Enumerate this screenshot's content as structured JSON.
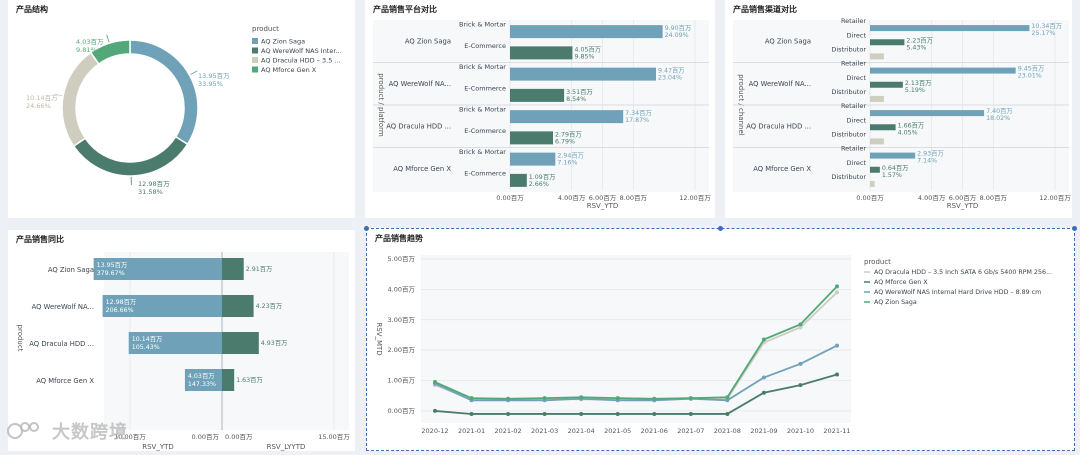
{
  "colors": {
    "zion": "#6fa2b8",
    "werewolf": "#4a7b6c",
    "dracula": "#cfccc0",
    "mforce": "#52a878",
    "selection": "#3e6db5"
  },
  "panel1": {
    "title": "产品结构",
    "legend_title": "product",
    "legend": [
      "AQ Zion Saga",
      "AQ WereWolf NAS Inter...",
      "AQ Dracula HDD – 3.5 ...",
      "AQ Mforce Gen X"
    ],
    "slices": [
      {
        "name": "AQ Zion Saga",
        "value": 13.95,
        "value_label": "13.95百万",
        "pct_label": "33.95%",
        "color_key": "zion"
      },
      {
        "name": "AQ WereWolf NAS",
        "value": 12.98,
        "value_label": "12.98百万",
        "pct_label": "31.58%",
        "color_key": "werewolf"
      },
      {
        "name": "AQ Dracula HDD",
        "value": 10.14,
        "value_label": "10.14百万",
        "pct_label": "24.66%",
        "color_key": "dracula"
      },
      {
        "name": "AQ Mforce Gen X",
        "value": 4.03,
        "value_label": "4.03百万",
        "pct_label": "9.81%",
        "color_key": "mforce"
      }
    ]
  },
  "panel2": {
    "title": "产品销售平台对比",
    "ylabel": "product / platform",
    "xlabel": "RSV_YTD",
    "xticks": [
      "0.00百万",
      "4.00百万",
      "6.00百万",
      "8.00百万",
      "12.00百万"
    ],
    "xtick_values": [
      0,
      4,
      6,
      8,
      12
    ],
    "xmax": 12,
    "groups": [
      {
        "product": "AQ Zion Saga",
        "rows": [
          {
            "platform": "Brick & Mortar",
            "value": 9.9,
            "value_label": "9.90百万",
            "pct": "24.09%"
          },
          {
            "platform": "E-Commerce",
            "value": 4.05,
            "value_label": "4.05百万",
            "pct": "9.85%"
          }
        ]
      },
      {
        "product": "AQ WereWolf NA...",
        "rows": [
          {
            "platform": "Brick & Mortar",
            "value": 9.47,
            "value_label": "9.47百万",
            "pct": "23.04%"
          },
          {
            "platform": "E-Commerce",
            "value": 3.51,
            "value_label": "3.51百万",
            "pct": "8.54%"
          }
        ]
      },
      {
        "product": "AQ Dracula HDD ...",
        "rows": [
          {
            "platform": "Brick & Mortar",
            "value": 7.34,
            "value_label": "7.34百万",
            "pct": "17.87%"
          },
          {
            "platform": "E-Commerce",
            "value": 2.79,
            "value_label": "2.79百万",
            "pct": "6.79%"
          }
        ]
      },
      {
        "product": "AQ Mforce Gen X",
        "rows": [
          {
            "platform": "Brick & Mortar",
            "value": 2.94,
            "value_label": "2.94百万",
            "pct": "7.16%"
          },
          {
            "platform": "E-Commerce",
            "value": 1.09,
            "value_label": "1.09百万",
            "pct": "2.66%"
          }
        ]
      }
    ]
  },
  "panel3": {
    "title": "产品销售渠道对比",
    "ylabel": "product / channel",
    "xlabel": "RSV_YTD",
    "xticks": [
      "0.00百万",
      "4.00百万",
      "6.00百万",
      "8.00百万",
      "12.00百万"
    ],
    "xtick_values": [
      0,
      4,
      6,
      8,
      12
    ],
    "xmax": 12,
    "groups": [
      {
        "product": "AQ Zion Saga",
        "rows": [
          {
            "channel": "Retailer",
            "value": 10.34,
            "value_label": "10.34百万",
            "pct": "25.17%"
          },
          {
            "channel": "Direct",
            "value": 2.23,
            "value_label": "2.23百万",
            "pct": "5.43%"
          },
          {
            "channel": "Distributor",
            "value": 0.9,
            "value_label": "",
            "pct": ""
          }
        ]
      },
      {
        "product": "AQ WereWolf NA...",
        "rows": [
          {
            "channel": "Retailer",
            "value": 9.45,
            "value_label": "9.45百万",
            "pct": "23.01%"
          },
          {
            "channel": "Direct",
            "value": 2.13,
            "value_label": "2.13百万",
            "pct": "5.19%"
          },
          {
            "channel": "Distributor",
            "value": 0.9,
            "value_label": "",
            "pct": ""
          }
        ]
      },
      {
        "product": "AQ Dracula HDD ...",
        "rows": [
          {
            "channel": "Retailer",
            "value": 7.4,
            "value_label": "7.40百万",
            "pct": "18.02%"
          },
          {
            "channel": "Direct",
            "value": 1.66,
            "value_label": "1.66百万",
            "pct": "4.05%"
          },
          {
            "channel": "Distributor",
            "value": 0.9,
            "value_label": "",
            "pct": ""
          }
        ]
      },
      {
        "product": "AQ Mforce Gen X",
        "rows": [
          {
            "channel": "Retailer",
            "value": 2.93,
            "value_label": "2.93百万",
            "pct": "7.14%"
          },
          {
            "channel": "Direct",
            "value": 0.64,
            "value_label": "0.64百万",
            "pct": "1.57%"
          },
          {
            "channel": "Distributor",
            "value": 0.3,
            "value_label": "",
            "pct": ""
          }
        ]
      }
    ]
  },
  "panel4": {
    "title": "产品销售同比",
    "ylabel": "product",
    "left_xlabel": "RSV_YTD",
    "right_xlabel": "RSV_LYYTD",
    "left_ticks": [
      "10.00百万",
      "0.00百万"
    ],
    "right_ticks": [
      "0.00百万",
      "15.00百万"
    ],
    "rows": [
      {
        "product": "AQ Zion Saga",
        "ytd": 13.95,
        "ytd_label": "13.95百万",
        "growth": "379.67%",
        "lyytd": 2.91,
        "lyytd_label": "2.91百万"
      },
      {
        "product": "AQ WereWolf NA...",
        "ytd": 12.98,
        "ytd_label": "12.98百万",
        "growth": "206.66%",
        "lyytd": 4.23,
        "lyytd_label": "4.23百万"
      },
      {
        "product": "AQ Dracula HDD ...",
        "ytd": 10.14,
        "ytd_label": "10.14百万",
        "growth": "105.43%",
        "lyytd": 4.93,
        "lyytd_label": "4.93百万"
      },
      {
        "product": "AQ Mforce Gen X",
        "ytd": 4.03,
        "ytd_label": "4.03百万",
        "growth": "147.33%",
        "lyytd": 1.63,
        "lyytd_label": "1.63百万"
      }
    ]
  },
  "panel5": {
    "title": "产品销售趋势",
    "ylabel": "RSV_MTD",
    "legend_title": "product",
    "yticks": [
      "0.00百万",
      "1.00百万",
      "2.00百万",
      "3.00百万",
      "4.00百万",
      "5.00百万"
    ],
    "ytick_values": [
      0,
      1,
      2,
      3,
      4,
      5
    ],
    "ymax": 5,
    "x": [
      "2020-12",
      "2021-01",
      "2021-02",
      "2021-03",
      "2021-04",
      "2021-05",
      "2021-06",
      "2021-07",
      "2021-08",
      "2021-09",
      "2021-10",
      "2021-11"
    ],
    "series": [
      {
        "name": "AQ Dracula HDD – 3.5 Inch SATA 6 Gb/s 5400 RPM 256...",
        "color_key": "dracula",
        "values": [
          0.85,
          0.38,
          0.38,
          0.4,
          0.38,
          0.38,
          0.38,
          0.4,
          0.4,
          2.25,
          2.75,
          3.9
        ]
      },
      {
        "name": "AQ Mforce Gen X",
        "color_key": "werewolf",
        "values": [
          0.0,
          -0.1,
          -0.1,
          -0.1,
          -0.1,
          -0.1,
          -0.1,
          -0.1,
          -0.1,
          0.6,
          0.85,
          1.2
        ]
      },
      {
        "name": "AQ WereWolf NAS Internal Hard Drive HDD – 8.89 cm",
        "color_key": "zion",
        "values": [
          0.9,
          0.35,
          0.35,
          0.35,
          0.4,
          0.35,
          0.35,
          0.4,
          0.35,
          1.1,
          1.55,
          2.15
        ]
      },
      {
        "name": "AQ Zion Saga",
        "color_key": "mforce",
        "values": [
          0.95,
          0.42,
          0.4,
          0.42,
          0.45,
          0.42,
          0.4,
          0.42,
          0.45,
          2.35,
          2.85,
          4.1
        ]
      }
    ]
  },
  "watermark": {
    "text": "大数跨境"
  }
}
